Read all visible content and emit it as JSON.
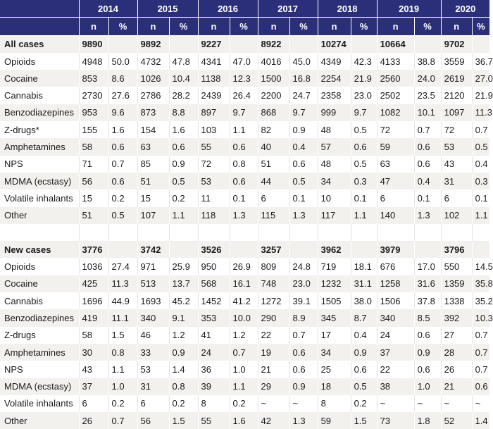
{
  "years": [
    "2014",
    "2015",
    "2016",
    "2017",
    "2018",
    "2019",
    "2020"
  ],
  "sub_headers": [
    "n",
    "%"
  ],
  "rows": [
    {
      "label": "All cases",
      "bold": true,
      "cells": [
        "9890",
        "",
        "9892",
        "",
        "9227",
        "",
        "8922",
        "",
        "10274",
        "",
        "10664",
        "",
        "9702",
        ""
      ]
    },
    {
      "label": "Opioids",
      "cells": [
        "4948",
        "50.0",
        "4732",
        "47.8",
        "4341",
        "47.0",
        "4016",
        "45.0",
        "4349",
        "42.3",
        "4133",
        "38.8",
        "3559",
        "36.7"
      ]
    },
    {
      "label": "Cocaine",
      "cells": [
        "853",
        "8.6",
        "1026",
        "10.4",
        "1138",
        "12.3",
        "1500",
        "16.8",
        "2254",
        "21.9",
        "2560",
        "24.0",
        "2619",
        "27.0"
      ]
    },
    {
      "label": "Cannabis",
      "cells": [
        "2730",
        "27.6",
        "2786",
        "28.2",
        "2439",
        "26.4",
        "2200",
        "24.7",
        "2358",
        "23.0",
        "2502",
        "23.5",
        "2120",
        "21.9"
      ]
    },
    {
      "label": "Benzodiazepines",
      "cells": [
        "953",
        "9.6",
        "873",
        "8.8",
        "897",
        "9.7",
        "868",
        "9.7",
        "999",
        "9.7",
        "1082",
        "10.1",
        "1097",
        "11.3"
      ]
    },
    {
      "label": "Z-drugs*",
      "cells": [
        "155",
        "1.6",
        "154",
        "1.6",
        "103",
        "1.1",
        "82",
        "0.9",
        "48",
        "0.5",
        "72",
        "0.7",
        "72",
        "0.7"
      ]
    },
    {
      "label": "Amphetamines",
      "cells": [
        "58",
        "0.6",
        "63",
        "0.6",
        "55",
        "0.6",
        "40",
        "0.4",
        "57",
        "0.6",
        "59",
        "0.6",
        "53",
        "0.5"
      ]
    },
    {
      "label": "NPS",
      "cells": [
        "71",
        "0.7",
        "85",
        "0.9",
        "72",
        "0.8",
        "51",
        "0.6",
        "48",
        "0.5",
        "63",
        "0.6",
        "43",
        "0.4"
      ]
    },
    {
      "label": "MDMA (ecstasy)",
      "cells": [
        "56",
        "0.6",
        "51",
        "0.5",
        "53",
        "0.6",
        "44",
        "0.5",
        "34",
        "0.3",
        "47",
        "0.4",
        "31",
        "0.3"
      ]
    },
    {
      "label": "Volatile inhalants",
      "cells": [
        "15",
        "0.2",
        "15",
        "0.2",
        "11",
        "0.1",
        "6",
        "0.1",
        "10",
        "0.1",
        "6",
        "0.1",
        "6",
        "0.1"
      ]
    },
    {
      "label": "Other",
      "cells": [
        "51",
        "0.5",
        "107",
        "1.1",
        "118",
        "1.3",
        "115",
        "1.3",
        "117",
        "1.1",
        "140",
        "1.3",
        "102",
        "1.1"
      ]
    },
    {
      "label": "",
      "cells": [
        "",
        "",
        "",
        "",
        "",
        "",
        "",
        "",
        "",
        "",
        "",
        "",
        "",
        ""
      ]
    },
    {
      "label": "New cases",
      "bold": true,
      "cells": [
        "3776",
        "",
        "3742",
        "",
        "3526",
        "",
        "3257",
        "",
        "3962",
        "",
        "3979",
        "",
        "3796",
        ""
      ]
    },
    {
      "label": "Opioids",
      "cells": [
        "1036",
        "27.4",
        "971",
        "25.9",
        "950",
        "26.9",
        "809",
        "24.8",
        "719",
        "18.1",
        "676",
        "17.0",
        "550",
        "14.5"
      ]
    },
    {
      "label": "Cocaine",
      "cells": [
        "425",
        "11.3",
        "513",
        "13.7",
        "568",
        "16.1",
        "748",
        "23.0",
        "1232",
        "31.1",
        "1258",
        "31.6",
        "1359",
        "35.8"
      ]
    },
    {
      "label": "Cannabis",
      "cells": [
        "1696",
        "44.9",
        "1693",
        "45.2",
        "1452",
        "41.2",
        "1272",
        "39.1",
        "1505",
        "38.0",
        "1506",
        "37.8",
        "1338",
        "35.2"
      ]
    },
    {
      "label": "Benzodiazepines",
      "cells": [
        "419",
        "11.1",
        "340",
        "9.1",
        "353",
        "10.0",
        "290",
        "8.9",
        "345",
        "8.7",
        "340",
        "8.5",
        "392",
        "10.3"
      ]
    },
    {
      "label": "Z-drugs",
      "cells": [
        "58",
        "1.5",
        "46",
        "1.2",
        "41",
        "1.2",
        "22",
        "0.7",
        "17",
        "0.4",
        "24",
        "0.6",
        "27",
        "0.7"
      ]
    },
    {
      "label": "Amphetamines",
      "cells": [
        "30",
        "0.8",
        "33",
        "0.9",
        "24",
        "0.7",
        "19",
        "0.6",
        "34",
        "0.9",
        "37",
        "0.9",
        "28",
        "0.7"
      ]
    },
    {
      "label": "NPS",
      "cells": [
        "43",
        "1.1",
        "53",
        "1.4",
        "36",
        "1.0",
        "21",
        "0.6",
        "25",
        "0.6",
        "22",
        "0.6",
        "26",
        "0.7"
      ]
    },
    {
      "label": "MDMA (ecstasy)",
      "cells": [
        "37",
        "1.0",
        "31",
        "0.8",
        "39",
        "1.1",
        "29",
        "0.9",
        "18",
        "0.5",
        "38",
        "1.0",
        "21",
        "0.6"
      ]
    },
    {
      "label": "Volatile inhalants",
      "cells": [
        "6",
        "0.2",
        "6",
        "0.2",
        "8",
        "0.2",
        "~",
        "~",
        "8",
        "0.2",
        "~",
        "~",
        "~",
        "~"
      ]
    },
    {
      "label": "Other",
      "cells": [
        "26",
        "0.7",
        "56",
        "1.5",
        "55",
        "1.6",
        "42",
        "1.3",
        "59",
        "1.5",
        "73",
        "1.8",
        "52",
        "1.4"
      ]
    }
  ]
}
